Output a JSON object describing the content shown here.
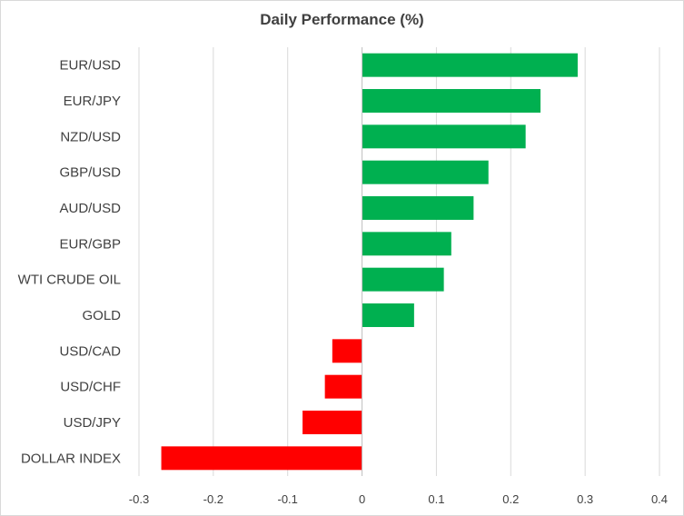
{
  "chart_data": {
    "type": "bar",
    "orientation": "horizontal",
    "title": "Daily Performance  (%)",
    "xlabel": "",
    "ylabel": "",
    "xlim": [
      -0.3,
      0.4
    ],
    "ticks": [
      "-0.3",
      "-0.2",
      "-0.1",
      "0",
      "0.1",
      "0.2",
      "0.3",
      "0.4"
    ],
    "tick_values": [
      -0.3,
      -0.2,
      -0.1,
      0,
      0.1,
      0.2,
      0.3,
      0.4
    ],
    "grid": true,
    "legend": "none",
    "categories": [
      "EUR/USD",
      "EUR/JPY",
      "NZD/USD",
      "GBP/USD",
      "AUD/USD",
      "EUR/GBP",
      "WTI CRUDE OIL",
      "GOLD",
      "USD/CAD",
      "USD/CHF",
      "USD/JPY",
      "DOLLAR INDEX"
    ],
    "values": [
      0.29,
      0.24,
      0.22,
      0.17,
      0.15,
      0.12,
      0.11,
      0.07,
      -0.04,
      -0.05,
      -0.08,
      -0.27
    ],
    "colors": {
      "positive": "#00b050",
      "negative": "#ff0000",
      "grid": "#d9d9d9",
      "axis": "#bfbfbf",
      "text": "#404040"
    }
  }
}
